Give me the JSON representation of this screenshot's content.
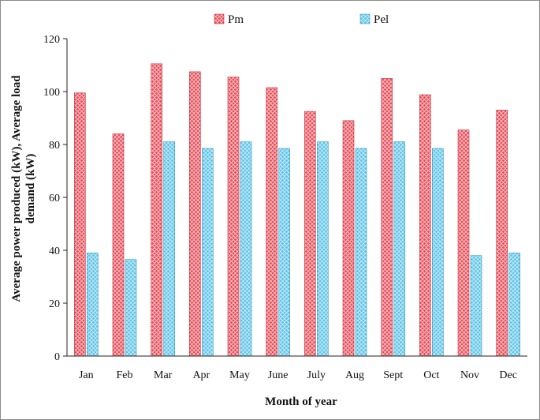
{
  "chart_data": {
    "type": "bar",
    "title": "",
    "xlabel": "Month of year",
    "ylabel_lines": [
      "Average power produced (kW), Average load",
      "demand (kW)"
    ],
    "categories": [
      "Jan",
      "Feb",
      "Mar",
      "Apr",
      "May",
      "June",
      "July",
      "Aug",
      "Sept",
      "Oct",
      "Nov",
      "Dec"
    ],
    "series": [
      {
        "name": "Pm",
        "color": "#e8505b",
        "values": [
          99.5,
          84,
          110.5,
          107.5,
          105.5,
          101.5,
          92.5,
          89,
          105,
          98.8,
          85.5,
          93
        ]
      },
      {
        "name": "Pel",
        "color": "#5ec4e8",
        "values": [
          39,
          36.5,
          81,
          78.5,
          81,
          78.5,
          81,
          78.5,
          81,
          78.5,
          38,
          39
        ]
      }
    ],
    "ylim": [
      0,
      120
    ],
    "yticks": [
      "0",
      "20",
      "40",
      "60",
      "80",
      "100",
      "120"
    ],
    "grid": false,
    "legend_position": "top"
  }
}
